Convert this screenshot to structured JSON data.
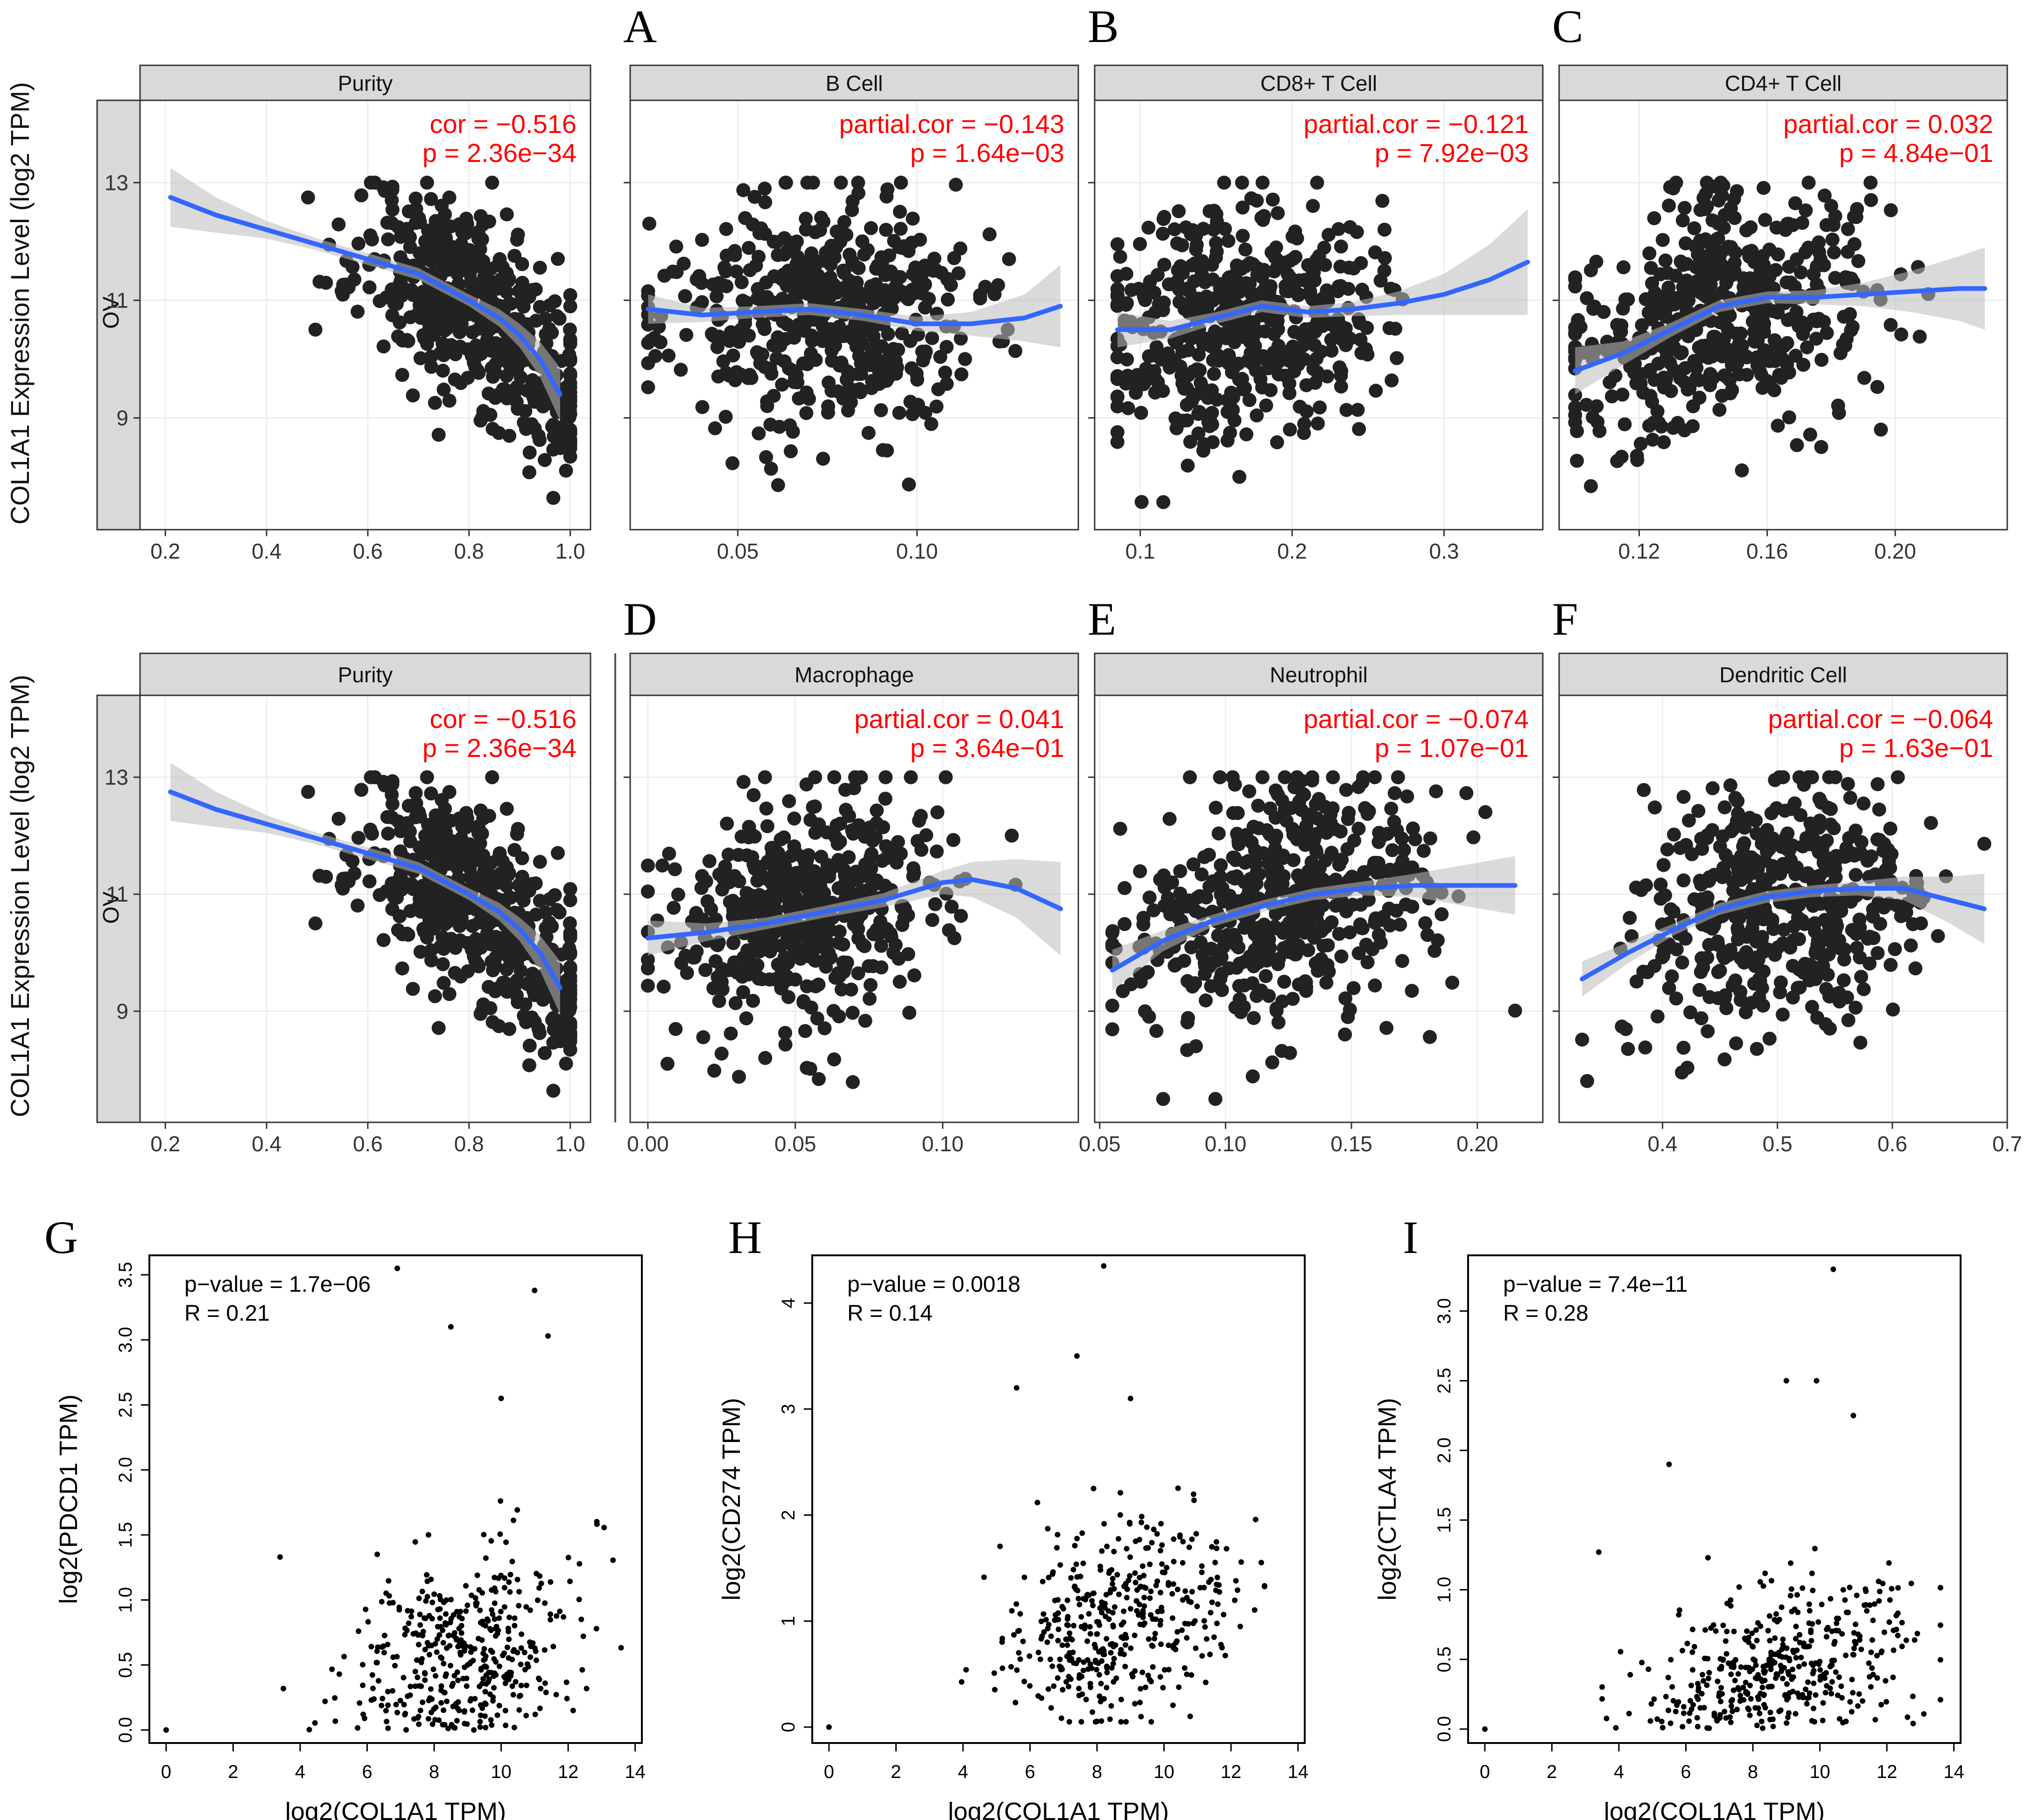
{
  "figure": {
    "panel_labels": [
      "A",
      "B",
      "C",
      "D",
      "E",
      "F",
      "G",
      "H",
      "I"
    ],
    "timer_row_ylabel": "COL1A1 Expression Level (log2 TPM)",
    "cancer_strip": "OV",
    "colors": {
      "point": "#222222",
      "fit_line": "#3366FF",
      "confidence_band": "#BBBBBB",
      "annotation": "#FF0000",
      "strip_fill": "#D9D9D9",
      "grid": "#EBEBEB"
    }
  },
  "chart_data": [
    {
      "id": "row1-purity",
      "type": "scatter",
      "title": "Purity",
      "annotation": [
        "cor = −0.516",
        "p = 2.36e−34"
      ],
      "xlim": [
        0.15,
        1.04
      ],
      "ylim": [
        7.1,
        14.4
      ],
      "xticks": [
        0.2,
        0.4,
        0.6,
        0.8,
        1.0
      ],
      "xtick_labels": [
        "0.2",
        "0.4",
        "0.6",
        "0.8",
        "1.0"
      ],
      "yticks": [
        9,
        11,
        13
      ],
      "ytick_labels": [
        "9",
        "11",
        "13"
      ],
      "fit": {
        "x": [
          0.21,
          0.3,
          0.4,
          0.5,
          0.6,
          0.7,
          0.8,
          0.86,
          0.9,
          0.94,
          0.98
        ],
        "y": [
          12.75,
          12.45,
          12.2,
          11.95,
          11.7,
          11.45,
          11.0,
          10.7,
          10.4,
          10.0,
          9.4
        ]
      },
      "band": [
        0.5,
        0.3,
        0.15,
        0.1,
        0.1,
        0.1,
        0.1,
        0.15,
        0.2,
        0.3,
        0.45
      ],
      "points_source": {
        "n": 500,
        "x_mean": 0.82,
        "x_sd": 0.12,
        "x_range": [
          0.21,
          1.0
        ],
        "y_sd": 0.85,
        "y_range": [
          7.5,
          13.0
        ],
        "seed": 11
      }
    },
    {
      "id": "row1-bcell",
      "type": "scatter",
      "title": "B Cell",
      "annotation": [
        "partial.cor = −0.143",
        "p = 1.64e−03"
      ],
      "xlim": [
        0.02,
        0.145
      ],
      "ylim": [
        7.1,
        14.4
      ],
      "xticks": [
        0.05,
        0.1
      ],
      "xtick_labels": [
        "0.05",
        "0.10"
      ],
      "yticks": [
        9,
        11,
        13
      ],
      "ytick_labels": [],
      "fit": {
        "x": [
          0.025,
          0.04,
          0.055,
          0.07,
          0.085,
          0.1,
          0.115,
          0.13,
          0.14
        ],
        "y": [
          10.85,
          10.75,
          10.8,
          10.85,
          10.75,
          10.6,
          10.6,
          10.7,
          10.9
        ]
      },
      "band": [
        0.25,
        0.12,
        0.1,
        0.1,
        0.1,
        0.12,
        0.2,
        0.4,
        0.7
      ],
      "points_source": {
        "n": 500,
        "x_mean": 0.072,
        "x_sd": 0.022,
        "x_range": [
          0.025,
          0.14
        ],
        "y_sd": 1.0,
        "y_range": [
          7.5,
          13.0
        ],
        "seed": 23
      }
    },
    {
      "id": "row1-cd8",
      "type": "scatter",
      "title": "CD8+ T Cell",
      "annotation": [
        "partial.cor = −0.121",
        "p = 7.92e−03"
      ],
      "xlim": [
        0.07,
        0.365
      ],
      "ylim": [
        7.1,
        14.4
      ],
      "xticks": [
        0.1,
        0.2,
        0.3
      ],
      "xtick_labels": [
        "0.1",
        "0.2",
        "0.3"
      ],
      "yticks": [
        9,
        11,
        13
      ],
      "ytick_labels": [],
      "fit": {
        "x": [
          0.085,
          0.12,
          0.15,
          0.18,
          0.21,
          0.24,
          0.27,
          0.3,
          0.33,
          0.355
        ],
        "y": [
          10.5,
          10.5,
          10.7,
          10.9,
          10.8,
          10.85,
          10.95,
          11.1,
          11.35,
          11.65
        ]
      },
      "band": [
        0.3,
        0.15,
        0.1,
        0.1,
        0.1,
        0.12,
        0.2,
        0.35,
        0.6,
        0.9
      ],
      "points_source": {
        "n": 500,
        "x_mean": 0.165,
        "x_sd": 0.045,
        "x_range": [
          0.085,
          0.355
        ],
        "y_sd": 1.0,
        "y_range": [
          7.5,
          13.0
        ],
        "seed": 37
      }
    },
    {
      "id": "row1-cd4",
      "type": "scatter",
      "title": "CD4+ T Cell",
      "annotation": [
        "partial.cor = 0.032",
        "p = 4.84e−01"
      ],
      "xlim": [
        0.095,
        0.235
      ],
      "ylim": [
        7.1,
        14.4
      ],
      "xticks": [
        0.12,
        0.16,
        0.2
      ],
      "xtick_labels": [
        "0.12",
        "0.16",
        "0.20"
      ],
      "yticks": [
        9,
        11,
        13
      ],
      "ytick_labels": [],
      "fit": {
        "x": [
          0.1,
          0.115,
          0.13,
          0.145,
          0.16,
          0.175,
          0.19,
          0.205,
          0.22,
          0.228
        ],
        "y": [
          9.8,
          10.1,
          10.5,
          10.9,
          11.05,
          11.05,
          11.1,
          11.15,
          11.2,
          11.2
        ]
      },
      "band": [
        0.4,
        0.2,
        0.12,
        0.1,
        0.1,
        0.12,
        0.2,
        0.35,
        0.55,
        0.7
      ],
      "points_source": {
        "n": 500,
        "x_mean": 0.145,
        "x_sd": 0.025,
        "x_range": [
          0.1,
          0.228
        ],
        "y_sd": 1.0,
        "y_range": [
          7.5,
          13.0
        ],
        "seed": 41
      }
    },
    {
      "id": "row2-purity",
      "type": "scatter",
      "title": "Purity",
      "annotation": [
        "cor = −0.516",
        "p = 2.36e−34"
      ],
      "xlim": [
        0.15,
        1.04
      ],
      "ylim": [
        7.1,
        14.4
      ],
      "xticks": [
        0.2,
        0.4,
        0.6,
        0.8,
        1.0
      ],
      "xtick_labels": [
        "0.2",
        "0.4",
        "0.6",
        "0.8",
        "1.0"
      ],
      "yticks": [
        9,
        11,
        13
      ],
      "ytick_labels": [
        "9",
        "11",
        "13"
      ],
      "fit": {
        "x": [
          0.21,
          0.3,
          0.4,
          0.5,
          0.6,
          0.7,
          0.8,
          0.86,
          0.9,
          0.94,
          0.98
        ],
        "y": [
          12.75,
          12.45,
          12.2,
          11.95,
          11.7,
          11.45,
          11.0,
          10.7,
          10.4,
          10.0,
          9.4
        ]
      },
      "band": [
        0.5,
        0.3,
        0.15,
        0.1,
        0.1,
        0.1,
        0.1,
        0.15,
        0.2,
        0.3,
        0.45
      ],
      "points_source": {
        "n": 500,
        "x_mean": 0.82,
        "x_sd": 0.12,
        "x_range": [
          0.21,
          1.0
        ],
        "y_sd": 0.85,
        "y_range": [
          7.5,
          13.0
        ],
        "seed": 11
      }
    },
    {
      "id": "row2-macrophage",
      "type": "scatter",
      "title": "Macrophage",
      "annotation": [
        "partial.cor = 0.041",
        "p = 3.64e−01"
      ],
      "xlim": [
        -0.006,
        0.146
      ],
      "ylim": [
        7.1,
        14.4
      ],
      "xticks": [
        0.0,
        0.05,
        0.1
      ],
      "xtick_labels": [
        "0.00",
        "0.05",
        "0.10"
      ],
      "yticks": [
        9,
        11,
        13
      ],
      "ytick_labels": [],
      "fit": {
        "x": [
          0.0,
          0.02,
          0.04,
          0.06,
          0.08,
          0.1,
          0.11,
          0.125,
          0.14
        ],
        "y": [
          10.25,
          10.35,
          10.5,
          10.7,
          10.9,
          11.2,
          11.25,
          11.1,
          10.75
        ]
      },
      "band": [
        0.3,
        0.15,
        0.1,
        0.1,
        0.12,
        0.2,
        0.3,
        0.5,
        0.8
      ],
      "points_source": {
        "n": 500,
        "x_mean": 0.055,
        "x_sd": 0.025,
        "x_range": [
          0.0,
          0.14
        ],
        "y_sd": 1.0,
        "y_range": [
          7.5,
          13.0
        ],
        "seed": 53
      }
    },
    {
      "id": "row2-neutrophil",
      "type": "scatter",
      "title": "Neutrophil",
      "annotation": [
        "partial.cor = −0.074",
        "p = 1.07e−01"
      ],
      "xlim": [
        0.048,
        0.226
      ],
      "ylim": [
        7.1,
        14.4
      ],
      "xticks": [
        0.05,
        0.1,
        0.15,
        0.2
      ],
      "xtick_labels": [
        "0.05",
        "0.10",
        "0.15",
        "0.20"
      ],
      "yticks": [
        9,
        11,
        13
      ],
      "ytick_labels": [],
      "fit": {
        "x": [
          0.055,
          0.075,
          0.095,
          0.115,
          0.135,
          0.155,
          0.175,
          0.195,
          0.215
        ],
        "y": [
          9.7,
          10.2,
          10.55,
          10.8,
          11.0,
          11.1,
          11.15,
          11.15,
          11.15
        ]
      },
      "band": [
        0.35,
        0.18,
        0.1,
        0.1,
        0.1,
        0.12,
        0.2,
        0.35,
        0.5
      ],
      "points_source": {
        "n": 500,
        "x_mean": 0.12,
        "x_sd": 0.03,
        "x_range": [
          0.055,
          0.215
        ],
        "y_sd": 1.0,
        "y_range": [
          7.5,
          13.0
        ],
        "seed": 67
      }
    },
    {
      "id": "row2-dendritic",
      "type": "scatter",
      "title": "Dendritic Cell",
      "annotation": [
        "partial.cor = −0.064",
        "p = 1.63e−01"
      ],
      "xlim": [
        0.31,
        0.7
      ],
      "ylim": [
        7.1,
        14.4
      ],
      "xticks": [
        0.4,
        0.5,
        0.6,
        0.7
      ],
      "xtick_labels": [
        "0.4",
        "0.5",
        "0.6",
        "0.7"
      ],
      "yticks": [
        9,
        11,
        13
      ],
      "ytick_labels": [],
      "fit": {
        "x": [
          0.33,
          0.37,
          0.41,
          0.45,
          0.49,
          0.53,
          0.57,
          0.61,
          0.65,
          0.68
        ],
        "y": [
          9.55,
          10.0,
          10.4,
          10.75,
          10.95,
          11.05,
          11.1,
          11.1,
          10.9,
          10.75
        ]
      },
      "band": [
        0.3,
        0.18,
        0.1,
        0.1,
        0.1,
        0.1,
        0.12,
        0.2,
        0.4,
        0.6
      ],
      "points_source": {
        "n": 500,
        "x_mean": 0.5,
        "x_sd": 0.065,
        "x_range": [
          0.33,
          0.68
        ],
        "y_sd": 1.0,
        "y_range": [
          7.5,
          13.0
        ],
        "seed": 79
      }
    },
    {
      "id": "gepia-pdcd1",
      "type": "scatter",
      "title": "",
      "xlabel": "log2(COL1A1 TPM)",
      "ylabel": "log2(PDCD1 TPM)",
      "annotation": [
        "p−value = 1.7e−06",
        "R = 0.21"
      ],
      "xlim": [
        -0.5,
        14.2
      ],
      "ylim": [
        -0.1,
        3.65
      ],
      "xticks": [
        0,
        2,
        4,
        6,
        8,
        10,
        12,
        14
      ],
      "xtick_labels": [
        "0",
        "2",
        "4",
        "6",
        "8",
        "10",
        "12",
        "14"
      ],
      "yticks": [
        0,
        0.5,
        1,
        1.5,
        2,
        2.5,
        3,
        3.5
      ],
      "ytick_labels": [
        "0.0",
        "0.5",
        "1.0",
        "1.5",
        "2.0",
        "2.5",
        "3.0",
        "3.5"
      ],
      "points_source": {
        "n": 420,
        "x_mean": 8.8,
        "x_sd": 1.8,
        "x_range": [
          3.5,
          13.6
        ],
        "y_mean": 0.55,
        "y_sd": 0.5,
        "y_range": [
          0.0,
          3.55
        ],
        "slope": 0.08,
        "seed": 91
      },
      "extra_points": [
        [
          0,
          0
        ],
        [
          3.4,
          1.33
        ],
        [
          6.9,
          3.55
        ],
        [
          11.0,
          3.38
        ],
        [
          8.5,
          3.1
        ],
        [
          11.4,
          3.03
        ],
        [
          10.0,
          2.55
        ]
      ]
    },
    {
      "id": "gepia-cd274",
      "type": "scatter",
      "title": "",
      "xlabel": "log2(COL1A1 TPM)",
      "ylabel": "log2(CD274 TPM)",
      "annotation": [
        "p−value = 0.0018",
        "R = 0.14"
      ],
      "xlim": [
        -0.5,
        14.2
      ],
      "ylim": [
        -0.15,
        4.45
      ],
      "xticks": [
        0,
        2,
        4,
        6,
        8,
        10,
        12,
        14
      ],
      "xtick_labels": [
        "0",
        "2",
        "4",
        "6",
        "8",
        "10",
        "12",
        "14"
      ],
      "yticks": [
        0,
        1,
        2,
        3,
        4
      ],
      "ytick_labels": [
        "0",
        "1",
        "2",
        "3",
        "4"
      ],
      "points_source": {
        "n": 420,
        "x_mean": 8.8,
        "x_sd": 1.8,
        "x_range": [
          3.5,
          13.0
        ],
        "y_mean": 1.0,
        "y_sd": 0.55,
        "y_range": [
          0.05,
          4.35
        ],
        "slope": 0.06,
        "seed": 103
      },
      "extra_points": [
        [
          0,
          0
        ],
        [
          8.2,
          4.35
        ],
        [
          7.4,
          3.5
        ],
        [
          5.6,
          3.2
        ],
        [
          9.0,
          3.1
        ]
      ]
    },
    {
      "id": "gepia-ctla4",
      "type": "scatter",
      "title": "",
      "xlabel": "log2(COL1A1 TPM)",
      "ylabel": "log2(CTLA4 TPM)",
      "annotation": [
        "p−value = 7.4e−11",
        "R = 0.28"
      ],
      "xlim": [
        -0.5,
        14.2
      ],
      "ylim": [
        -0.1,
        3.4
      ],
      "xticks": [
        0,
        2,
        4,
        6,
        8,
        10,
        12,
        14
      ],
      "xtick_labels": [
        "0",
        "2",
        "4",
        "6",
        "8",
        "10",
        "12",
        "14"
      ],
      "yticks": [
        0,
        0.5,
        1,
        1.5,
        2,
        2.5,
        3
      ],
      "ytick_labels": [
        "0.0",
        "0.5",
        "1.0",
        "1.5",
        "2.0",
        "2.5",
        "3.0"
      ],
      "points_source": {
        "n": 420,
        "x_mean": 8.8,
        "x_sd": 1.8,
        "x_range": [
          3.5,
          13.6
        ],
        "y_mean": 0.4,
        "y_sd": 0.4,
        "y_range": [
          0.0,
          3.3
        ],
        "slope": 0.08,
        "seed": 117
      },
      "extra_points": [
        [
          0,
          0
        ],
        [
          3.4,
          1.27
        ],
        [
          10.4,
          3.3
        ],
        [
          9.0,
          2.5
        ],
        [
          9.9,
          2.5
        ],
        [
          11.0,
          2.25
        ],
        [
          5.5,
          1.9
        ]
      ]
    }
  ]
}
